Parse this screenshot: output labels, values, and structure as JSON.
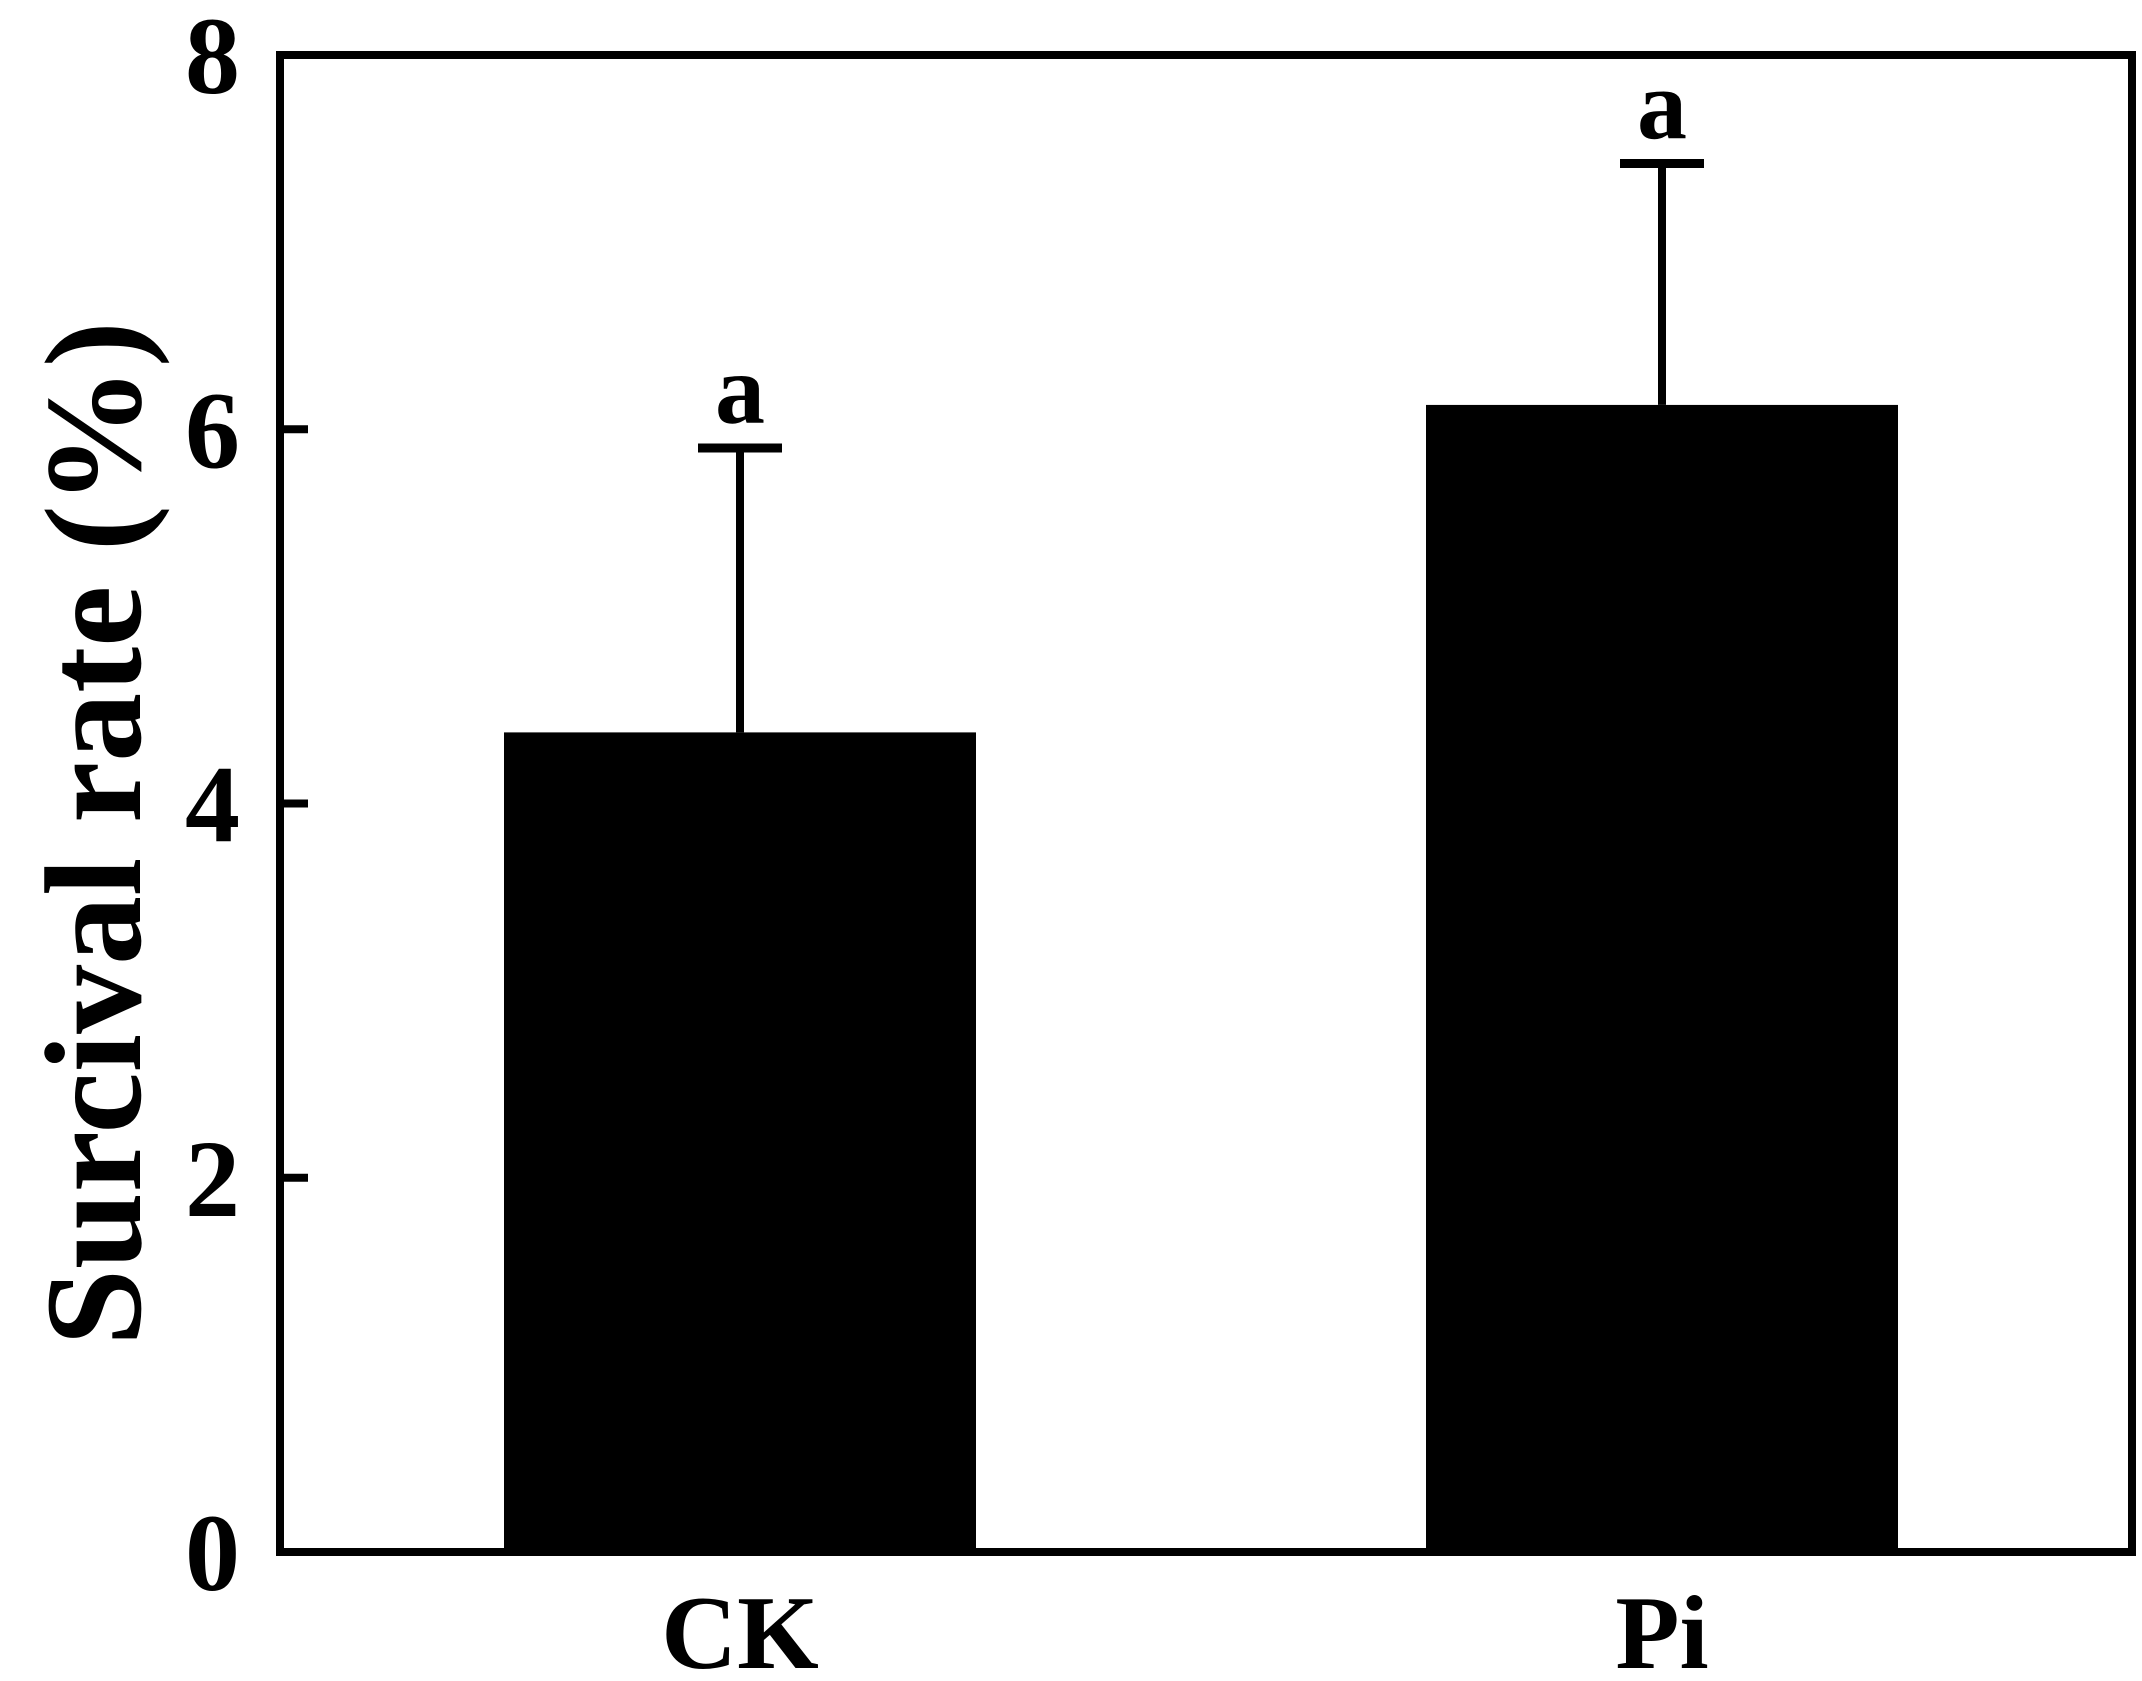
{
  "chart_data": {
    "type": "bar",
    "title": "",
    "xlabel": "",
    "ylabel": "Surcival rate (%)",
    "ylim": [
      0,
      8
    ],
    "yticks": [
      0,
      2,
      4,
      6,
      8
    ],
    "yticks_labels": [
      "0",
      "2",
      "4",
      "6",
      "8"
    ],
    "grid": false,
    "legend": "none",
    "categories": [
      "CK",
      "Pi"
    ],
    "series": [
      {
        "values": [
          4.38,
          6.13
        ],
        "errors": [
          1.52,
          1.29
        ],
        "significance": [
          "a",
          "a"
        ],
        "color": "#000000"
      }
    ]
  }
}
